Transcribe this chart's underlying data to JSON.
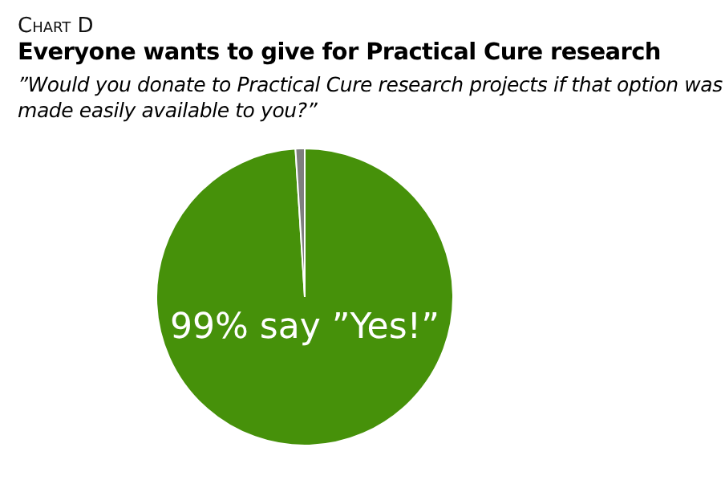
{
  "chart_data": {
    "type": "pie",
    "title": "Chart D",
    "subtitle": "Everyone wants to give for Practical Cure research",
    "annotations": [
      "”Would you donate to Practical Cure research projects if that option was made easily available to you?”",
      "99% say ”Yes!”"
    ],
    "categories": [
      null,
      null
    ],
    "values": [
      99,
      1
    ],
    "colors": [
      "#46910a",
      "#7f7f7f"
    ],
    "legend": false
  }
}
